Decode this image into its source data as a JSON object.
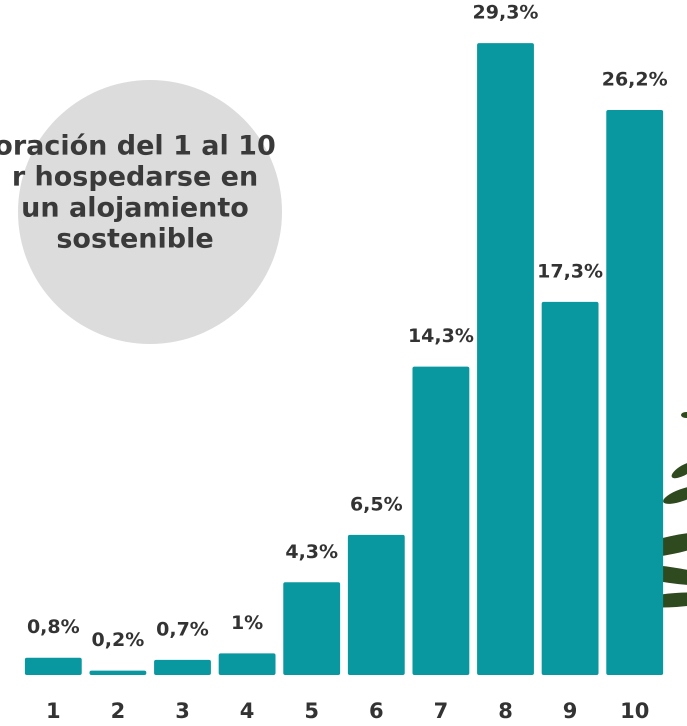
{
  "chart_data": {
    "type": "bar",
    "title": [
      "oración del 1 al 10",
      "r hospedarse en",
      "un  alojamiento",
      "sostenible"
    ],
    "categories": [
      "1",
      "2",
      "3",
      "4",
      "5",
      "6",
      "7",
      "8",
      "9",
      "10"
    ],
    "values": [
      0.8,
      0.2,
      0.7,
      1,
      4.3,
      6.5,
      14.3,
      29.3,
      17.3,
      26.2
    ],
    "value_labels": [
      "0,8%",
      "0,2%",
      "0,7%",
      "1%",
      "4,3%",
      "6,5%",
      "14,3%",
      "29,3%",
      "17,3%",
      "26,2%"
    ],
    "color": "#0a98a0",
    "ylim": [
      0,
      30
    ]
  }
}
